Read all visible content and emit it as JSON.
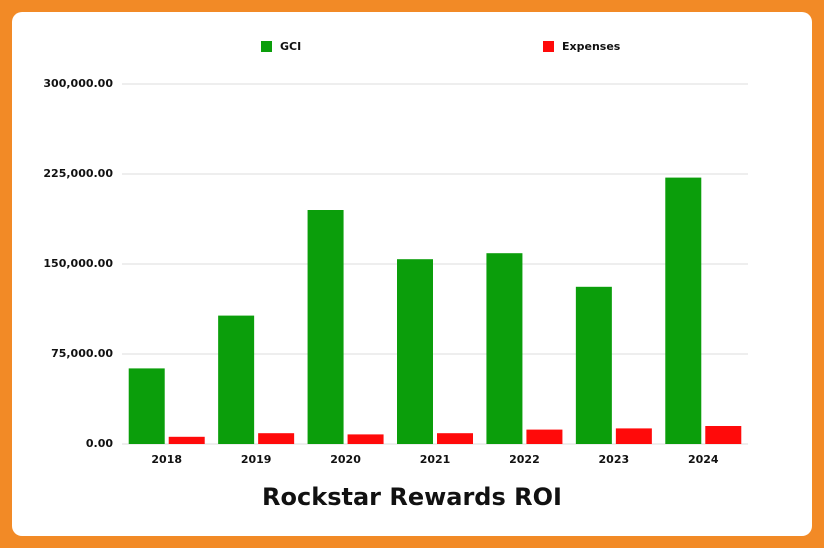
{
  "chart_data": {
    "type": "bar",
    "title": "Rockstar Rewards ROI",
    "categories": [
      "2018",
      "2019",
      "2020",
      "2021",
      "2022",
      "2023",
      "2024"
    ],
    "series": [
      {
        "name": "GCI",
        "color": "#0b9e0b",
        "values": [
          63000,
          107000,
          195000,
          154000,
          159000,
          131000,
          222000
        ]
      },
      {
        "name": "Expenses",
        "color": "#ff0a0a",
        "values": [
          6000,
          9000,
          8000,
          9000,
          12000,
          13000,
          15000
        ]
      }
    ],
    "ylim": [
      0,
      300000
    ],
    "yticks": [
      {
        "value": 0,
        "label": "0.00"
      },
      {
        "value": 75000,
        "label": "75,000.00"
      },
      {
        "value": 150000,
        "label": "150,000.00"
      },
      {
        "value": 225000,
        "label": "225,000.00"
      },
      {
        "value": 300000,
        "label": "300,000.00"
      }
    ],
    "grid": true
  }
}
